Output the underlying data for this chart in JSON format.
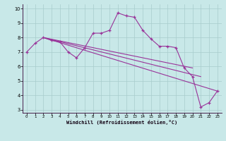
{
  "background_color": "#c8e8e8",
  "line_color": "#993399",
  "grid_color": "#a8cccc",
  "xlabel": "Windchill (Refroidissement éolien,°C)",
  "xlim": [
    -0.5,
    23.5
  ],
  "ylim": [
    2.8,
    10.3
  ],
  "xticks": [
    0,
    1,
    2,
    3,
    4,
    5,
    6,
    7,
    8,
    9,
    10,
    11,
    12,
    13,
    14,
    15,
    16,
    17,
    18,
    19,
    20,
    21,
    22,
    23
  ],
  "yticks": [
    3,
    4,
    5,
    6,
    7,
    8,
    9,
    10
  ],
  "main_x": [
    0,
    1,
    2,
    3,
    4,
    5,
    6,
    7,
    8,
    9,
    10,
    11,
    12,
    13,
    14,
    15,
    16,
    17,
    18,
    19,
    20,
    21,
    22,
    23
  ],
  "main_y": [
    7.0,
    7.6,
    8.0,
    7.8,
    7.7,
    7.0,
    6.6,
    7.3,
    8.3,
    8.3,
    8.5,
    9.7,
    9.5,
    9.4,
    8.5,
    7.9,
    7.4,
    7.4,
    7.3,
    5.9,
    5.3,
    3.2,
    3.5,
    4.3
  ],
  "straight_lines": [
    {
      "x": [
        2,
        20
      ],
      "y": [
        8.0,
        5.9
      ]
    },
    {
      "x": [
        2,
        21
      ],
      "y": [
        8.0,
        5.3
      ]
    },
    {
      "x": [
        2,
        23
      ],
      "y": [
        8.0,
        4.3
      ]
    }
  ]
}
